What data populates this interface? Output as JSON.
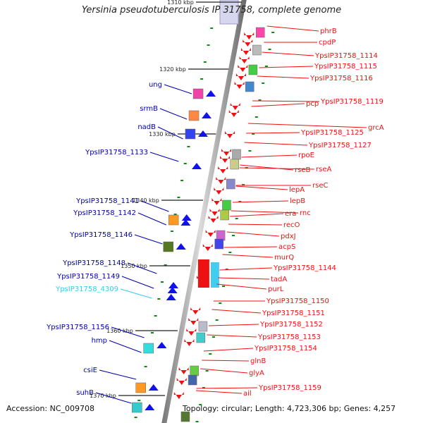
{
  "title": "Yersinia pseudotuberculosis IP 31758, complete genome",
  "footer": {
    "accession": "Accession: NC_009708",
    "summary": "Topology: circular; Length: 4,723,306 bp; Genes: 4,257"
  },
  "colors": {
    "right_strand": "#ee1111",
    "left_strand": "#1111ee",
    "left_label": "#0000aa",
    "highlight_label": "#33ccee",
    "tick": "#118811",
    "backbone": "#888888"
  },
  "kbp_markers": [
    "1310 kbp",
    "1320 kbp",
    "1330 kbp",
    "1340 kbp",
    "1350 kbp",
    "1360 kbp",
    "1370 kbp"
  ],
  "right_labels": [
    "phrB",
    "cpdP",
    "YpsIP31758_1114",
    "YpsIP31758_1115",
    "YpsIP31758_1116",
    "pcp",
    "YpsIP31758_1119",
    "grcA",
    "YpsIP31758_1125",
    "YpsIP31758_1127",
    "rpoE",
    "rseA",
    "rseB",
    "rseC",
    "lepA",
    "lepB",
    "rnc",
    "era",
    "recO",
    "pdxJ",
    "acpS",
    "murQ",
    "YpsIP31758_1144",
    "tadA",
    "purL",
    "YpsIP31758_1150",
    "YpsIP31758_1151",
    "YpsIP31758_1152",
    "YpsIP31758_1153",
    "YpsIP31758_1154",
    "glnB",
    "glyA",
    "YpsIP31758_1159",
    "ail"
  ],
  "left_labels": [
    "ung",
    "srmB",
    "nadB",
    "YpsIP31758_1133",
    "YpsIP31758_1141",
    "YpsIP31758_1142",
    "YpsIP31758_1146",
    "YpsIP31758_1148",
    "YpsIP31758_1149",
    "YpsIP31758_4309",
    "YpsIP31758_1156",
    "hmp",
    "csiE",
    "suhB"
  ],
  "highlighted_left_labels": [
    "YpsIP31758_4309"
  ]
}
